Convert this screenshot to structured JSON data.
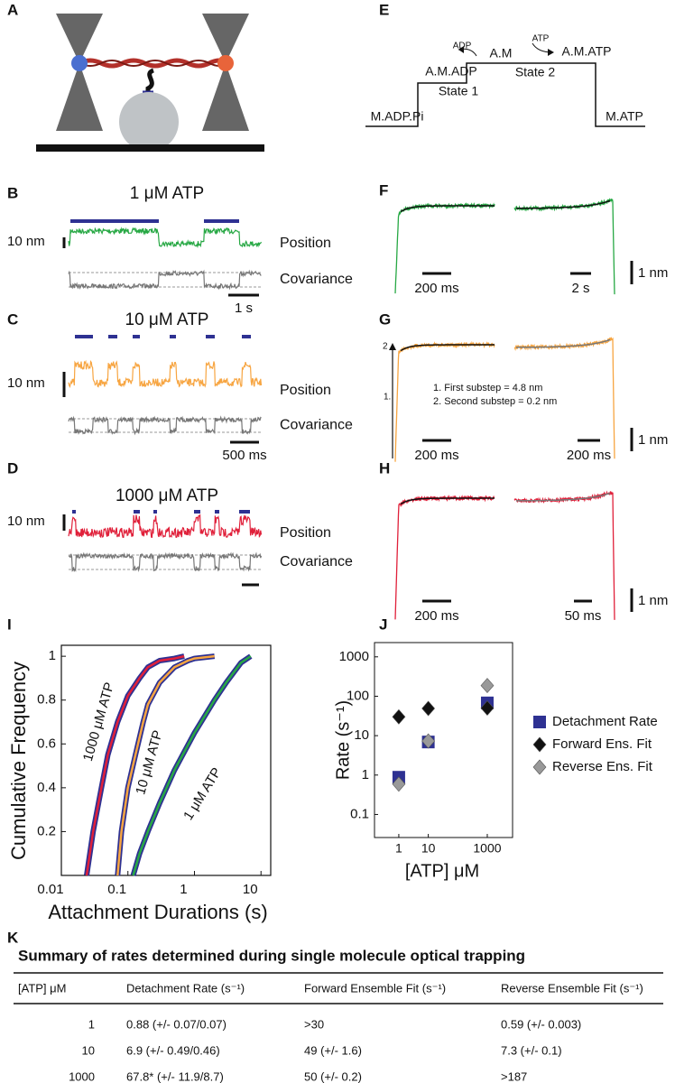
{
  "panels": {
    "labels": [
      "A",
      "B",
      "C",
      "D",
      "E",
      "F",
      "G",
      "H",
      "I",
      "J",
      "K"
    ]
  },
  "schematic_e": {
    "states": [
      "M.ADP.Pi",
      "A.M.ADP",
      "A.M",
      "A.M.ATP",
      "M.ATP"
    ],
    "state_labels": [
      "State 1",
      "State 2"
    ],
    "released": "ADP",
    "bound": "ATP"
  },
  "traces": [
    {
      "title": "1 μM ATP",
      "scale": "10 nm",
      "position": "Position",
      "covariance": "Covariance",
      "time_scale": "1 s"
    },
    {
      "title": "10 μM ATP",
      "scale": "10 nm",
      "position": "Position",
      "covariance": "Covariance",
      "time_scale": "500 ms"
    },
    {
      "title": "1000 μM ATP",
      "scale": "10 nm",
      "position": "Position",
      "covariance": "Covariance"
    }
  ],
  "ensembles": [
    {
      "forward_scale": "200 ms",
      "reverse_scale": "2 s",
      "amplitude_scale": "1 nm"
    },
    {
      "forward_scale": "200 ms",
      "reverse_scale": "200 ms",
      "amplitude_scale": "1 nm",
      "notes": [
        "1. First substep = 4.8 nm",
        "2. Second substep = 0.2 nm"
      ],
      "markers": [
        "1.",
        "2"
      ]
    },
    {
      "forward_scale": "200 ms",
      "reverse_scale": "50 ms",
      "amplitude_scale": "1 nm"
    }
  ],
  "chart_data": [
    {
      "type": "line",
      "xlabel": "Attachment Durations (s)",
      "ylabel": "Cumulative Frequency",
      "xscale": "log",
      "xlim": [
        0.01,
        14
      ],
      "xticks": [
        0.01,
        0.1,
        1,
        10
      ],
      "ylim": [
        0,
        1.05
      ],
      "yticks": [
        0.2,
        0.4,
        0.6,
        0.8,
        1
      ],
      "outline_color": "#2e3192",
      "series": [
        {
          "name": "1000 μM ATP",
          "color": "#e0203a",
          "x": [
            0.024,
            0.03,
            0.04,
            0.05,
            0.07,
            0.1,
            0.15,
            0.2,
            0.3,
            0.5,
            0.7
          ],
          "values": [
            0,
            0.2,
            0.4,
            0.55,
            0.7,
            0.82,
            0.9,
            0.95,
            0.98,
            0.99,
            1
          ]
        },
        {
          "name": "10 μM ATP",
          "color": "#f7a541",
          "x": [
            0.07,
            0.08,
            0.1,
            0.13,
            0.17,
            0.2,
            0.3,
            0.5,
            0.8,
            1,
            2
          ],
          "values": [
            0,
            0.2,
            0.4,
            0.55,
            0.7,
            0.78,
            0.88,
            0.95,
            0.98,
            0.99,
            1
          ]
        },
        {
          "name": "1 μM ATP",
          "color": "#27a844",
          "x": [
            0.12,
            0.15,
            0.2,
            0.3,
            0.5,
            1,
            2,
            3,
            5,
            7
          ],
          "values": [
            0,
            0.1,
            0.2,
            0.33,
            0.48,
            0.65,
            0.8,
            0.88,
            0.97,
            1
          ]
        }
      ]
    },
    {
      "type": "scatter",
      "xlabel": "[ATP] μM",
      "ylabel": "Rate (s⁻¹)",
      "xscale": "log",
      "yscale": "log",
      "x": [
        1,
        10,
        1000
      ],
      "xlim": [
        0.15,
        7200
      ],
      "xticks": [
        1,
        10,
        1000
      ],
      "ylim": [
        0.026,
        2300
      ],
      "yticks": [
        0.1,
        1,
        10,
        100,
        1000
      ],
      "series": [
        {
          "name": "Detachment Rate",
          "color": "#2e3192",
          "marker": "square",
          "values": [
            0.88,
            6.9,
            67.8
          ]
        },
        {
          "name": "Forward Ens. Fit",
          "color": "#111111",
          "marker": "diamond",
          "values": [
            30,
            49,
            50
          ]
        },
        {
          "name": "Reverse Ens. Fit",
          "color": "#999999",
          "marker": "diamond",
          "values": [
            0.59,
            7.3,
            187
          ]
        }
      ]
    }
  ],
  "table": {
    "title": "Summary of rates determined during single molecule optical trapping",
    "columns": [
      "[ATP] μM",
      "Detachment Rate (s⁻¹)",
      "Forward Ensemble Fit (s⁻¹)",
      "Reverse Ensemble Fit (s⁻¹)"
    ],
    "rows": [
      [
        1,
        "0.88 (+/- 0.07/0.07)",
        ">30",
        "0.59 (+/- 0.003)"
      ],
      [
        10,
        "6.9 (+/- 0.49/0.46)",
        "49 (+/- 1.6)",
        "7.3 (+/- 0.1)"
      ],
      [
        1000,
        "67.8* (+/- 11.9/8.7)",
        "50 (+/- 0.2)",
        ">187"
      ]
    ]
  }
}
